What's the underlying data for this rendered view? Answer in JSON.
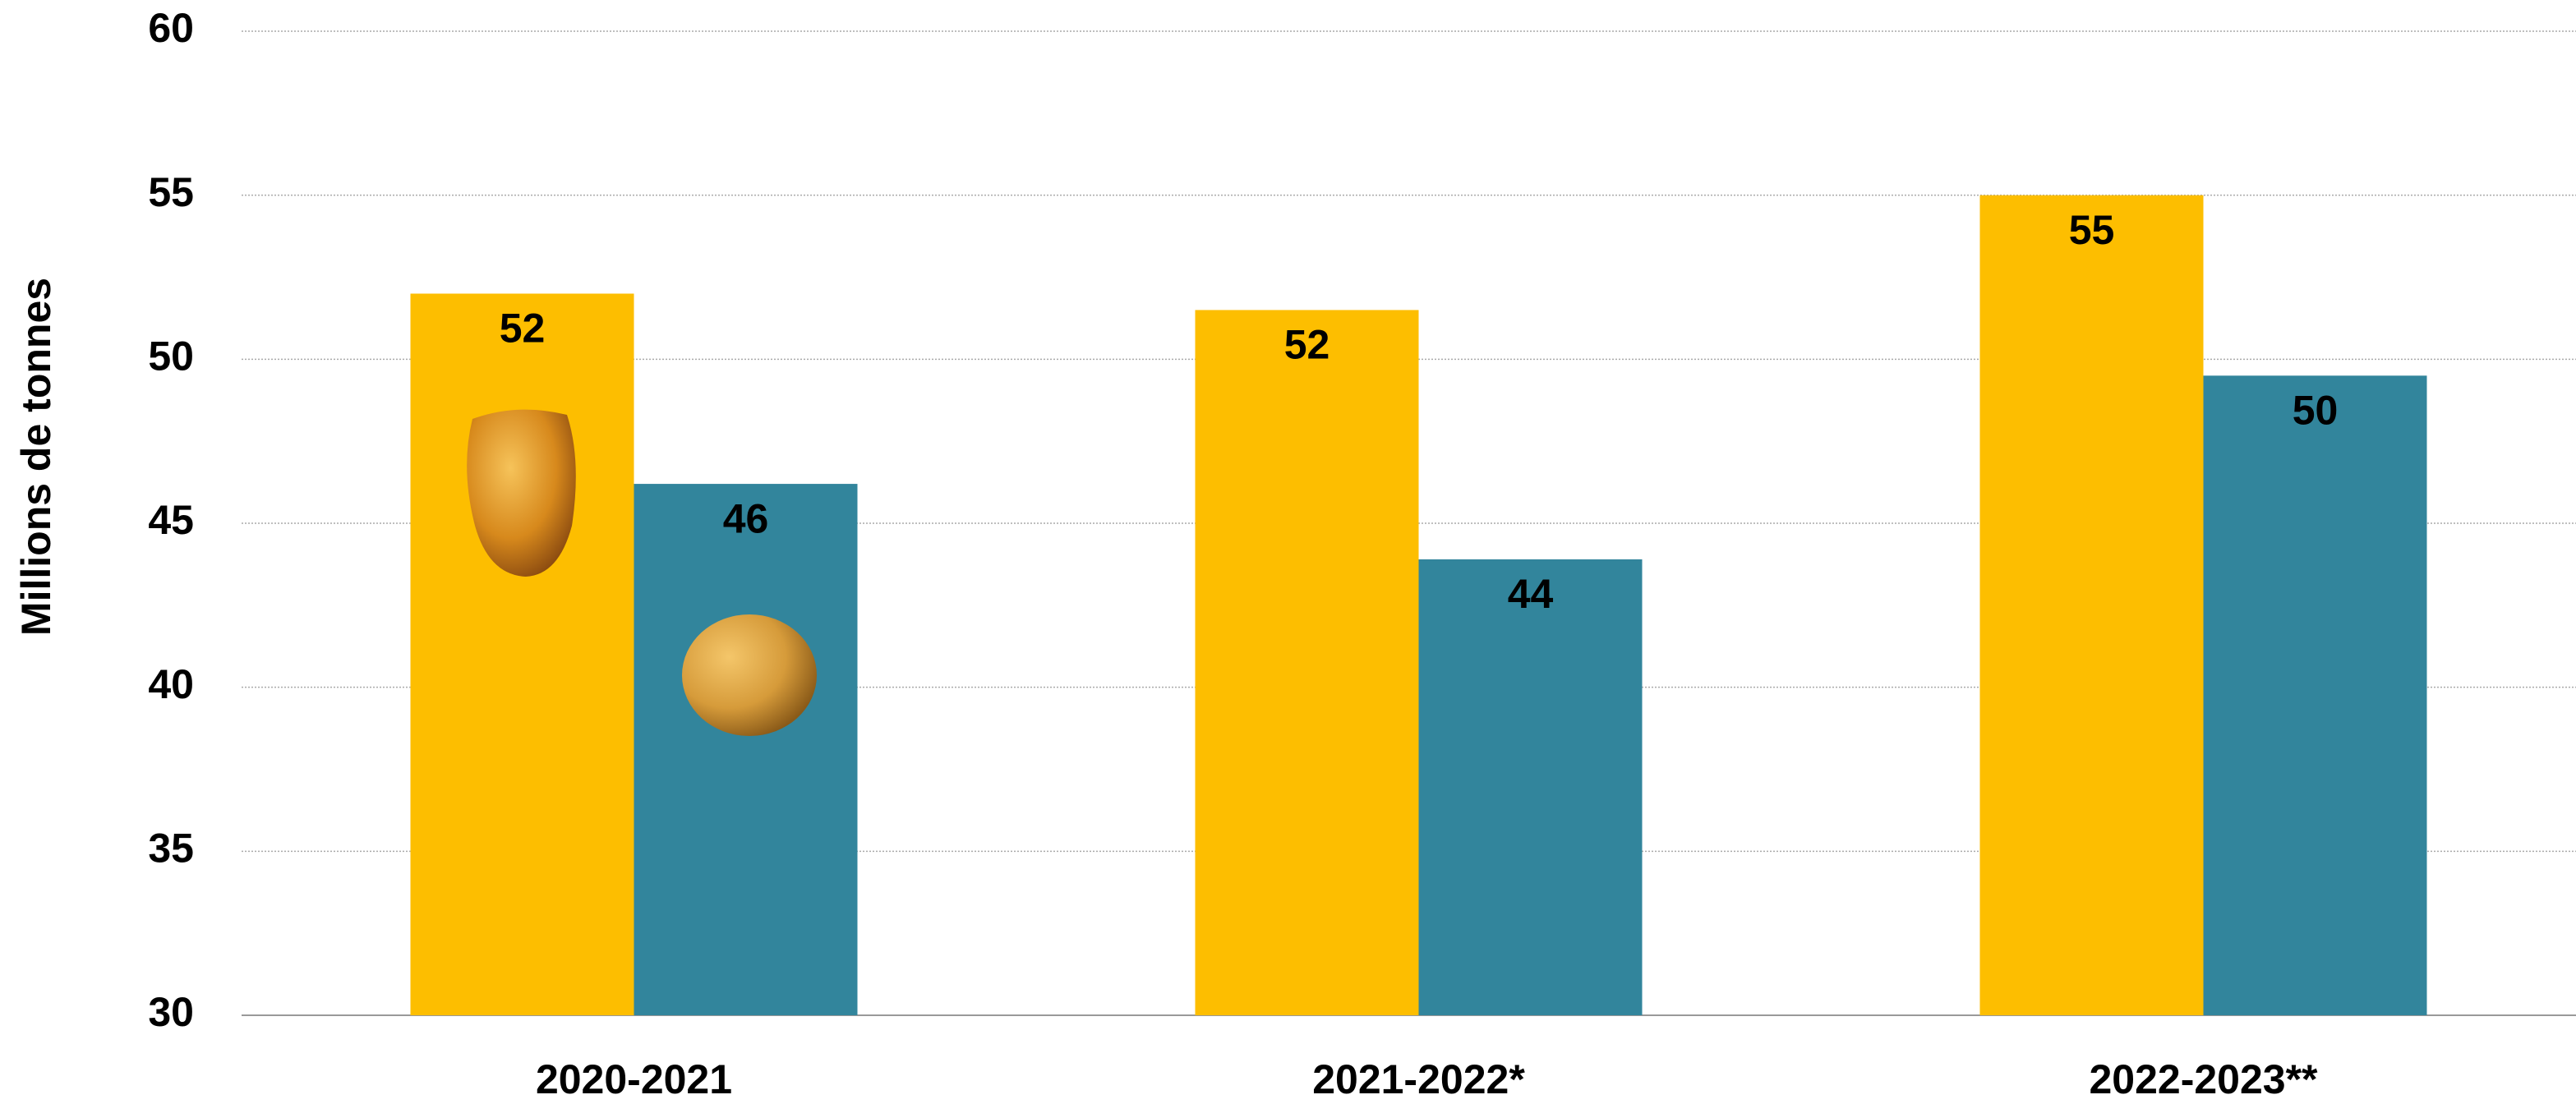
{
  "chart_data": {
    "type": "bar",
    "y_label": "Millions de tonnes",
    "categories": [
      "2020-2021",
      "2021-2022*",
      "2022-2023**"
    ],
    "series": [
      {
        "color": "#fdbe00",
        "values": [
          52.0,
          51.5,
          55.0
        ],
        "value_labels": [
          "52",
          "52",
          "55"
        ]
      },
      {
        "color": "#32859c",
        "values": [
          46.2,
          43.9,
          49.5
        ],
        "value_labels": [
          "46",
          "44",
          "50"
        ]
      }
    ],
    "ylim": [
      30,
      60
    ],
    "yticks": [
      30,
      35,
      40,
      45,
      50,
      55,
      60
    ],
    "grid": true
  }
}
